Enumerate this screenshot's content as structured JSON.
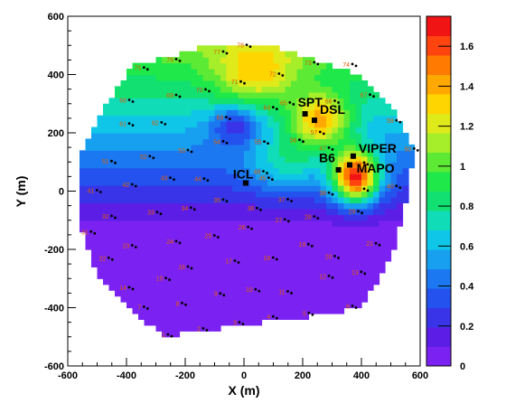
{
  "chart_data": {
    "type": "heatmap",
    "title": "",
    "xlabel": "X (m)",
    "ylabel": "Y (m)",
    "xlim": [
      -600,
      600
    ],
    "ylim": [
      -600,
      600
    ],
    "xticks": [
      "-600",
      "-400",
      "-200",
      "0",
      "200",
      "400",
      "600"
    ],
    "yticks": [
      "-600",
      "-400",
      "-200",
      "0",
      "200",
      "400",
      "600"
    ],
    "colorbar": {
      "range": [
        0,
        1.75
      ],
      "ticks": [
        "0",
        "0.2",
        "0.4",
        "0.6",
        "0.8",
        "1",
        "1.2",
        "1.4",
        "1.6"
      ],
      "palette": [
        "#7b22f2",
        "#5c1ee6",
        "#3a34e8",
        "#2352ee",
        "#1b78f0",
        "#17a0f0",
        "#0fc6e8",
        "#10dcb8",
        "#12e070",
        "#1ee84a",
        "#5cea34",
        "#a6ee2a",
        "#e0ea1a",
        "#ffd500",
        "#ffa800",
        "#ff7a00",
        "#ff4410",
        "#f01414"
      ]
    },
    "field_model": {
      "base": 0.25,
      "north_gradient": 0.0016,
      "blobs": [
        {
          "x": 380,
          "y": 50,
          "sx": 80,
          "sy": 90,
          "amp": 1.35
        },
        {
          "x": 260,
          "y": 240,
          "sx": 100,
          "sy": 90,
          "amp": 0.75
        },
        {
          "x": 40,
          "y": 400,
          "sx": 140,
          "sy": 110,
          "amp": 0.45
        },
        {
          "x": -30,
          "y": 230,
          "sx": 80,
          "sy": 70,
          "amp": -0.4
        },
        {
          "x": 150,
          "y": 90,
          "sx": 130,
          "sy": 100,
          "amp": 0.35
        }
      ]
    },
    "stations": [
      {
        "id": "1",
        "x": -268,
        "y": -495
      },
      {
        "id": "2",
        "x": -148,
        "y": -474
      },
      {
        "id": "3",
        "x": -25,
        "y": -453
      },
      {
        "id": "4",
        "x": 90,
        "y": -433
      },
      {
        "id": "5",
        "x": 212,
        "y": -421
      },
      {
        "id": "6",
        "x": 360,
        "y": -397
      },
      {
        "id": "7",
        "x": -350,
        "y": -400
      },
      {
        "id": "8",
        "x": -220,
        "y": -387
      },
      {
        "id": "9",
        "x": -90,
        "y": -354
      },
      {
        "id": "10",
        "x": 30,
        "y": -340
      },
      {
        "id": "11",
        "x": 140,
        "y": -347
      },
      {
        "id": "12",
        "x": 280,
        "y": -294
      },
      {
        "id": "13",
        "x": 390,
        "y": -280
      },
      {
        "id": "14",
        "x": -400,
        "y": -333
      },
      {
        "id": "15",
        "x": -275,
        "y": -301
      },
      {
        "id": "16",
        "x": -200,
        "y": -262
      },
      {
        "id": "17",
        "x": -40,
        "y": -242
      },
      {
        "id": "18",
        "x": 90,
        "y": -231
      },
      {
        "id": "19",
        "x": 210,
        "y": -185
      },
      {
        "id": "20",
        "x": 300,
        "y": -226
      },
      {
        "id": "21",
        "x": 440,
        "y": -182
      },
      {
        "id": "22",
        "x": -470,
        "y": -232
      },
      {
        "id": "23",
        "x": -390,
        "y": -189
      },
      {
        "id": "24",
        "x": -240,
        "y": -175
      },
      {
        "id": "25",
        "x": -110,
        "y": -155
      },
      {
        "id": "26",
        "x": 5,
        "y": -126
      },
      {
        "id": "27",
        "x": 130,
        "y": -100
      },
      {
        "id": "28",
        "x": 230,
        "y": -90
      },
      {
        "id": "29",
        "x": 380,
        "y": -72
      },
      {
        "id": "31",
        "x": -530,
        "y": -142
      },
      {
        "id": "32",
        "x": -460,
        "y": -88
      },
      {
        "id": "33",
        "x": -305,
        "y": -75
      },
      {
        "id": "34",
        "x": -190,
        "y": -60
      },
      {
        "id": "35",
        "x": -80,
        "y": -32
      },
      {
        "id": "36",
        "x": 35,
        "y": -61
      },
      {
        "id": "37",
        "x": 140,
        "y": -31
      },
      {
        "id": "38",
        "x": 280,
        "y": -8
      },
      {
        "id": "39",
        "x": 400,
        "y": 5
      },
      {
        "id": "40",
        "x": 510,
        "y": 15
      },
      {
        "id": "41",
        "x": -510,
        "y": 0
      },
      {
        "id": "42",
        "x": -390,
        "y": 20
      },
      {
        "id": "43",
        "x": -260,
        "y": 43
      },
      {
        "id": "44",
        "x": -145,
        "y": 40
      },
      {
        "id": "45",
        "x": 75,
        "y": 43
      },
      {
        "id": "46",
        "x": 57,
        "y": 65
      },
      {
        "id": "47",
        "x": 280,
        "y": 146
      },
      {
        "id": "49",
        "x": 400,
        "y": 95
      },
      {
        "id": "50",
        "x": 570,
        "y": 143
      },
      {
        "id": "51",
        "x": -460,
        "y": 100
      },
      {
        "id": "52",
        "x": -330,
        "y": 117
      },
      {
        "id": "53",
        "x": -200,
        "y": 138
      },
      {
        "id": "54",
        "x": -80,
        "y": 168
      },
      {
        "id": "55",
        "x": 60,
        "y": 167
      },
      {
        "id": "56",
        "x": 180,
        "y": 173
      },
      {
        "id": "57",
        "x": 250,
        "y": 200
      },
      {
        "id": "59",
        "x": 510,
        "y": 240
      },
      {
        "id": "61",
        "x": -400,
        "y": 229
      },
      {
        "id": "62",
        "x": -290,
        "y": 233
      },
      {
        "id": "63",
        "x": -70,
        "y": 251
      },
      {
        "id": "64",
        "x": 90,
        "y": 285
      },
      {
        "id": "65",
        "x": 147,
        "y": 301
      },
      {
        "id": "66",
        "x": 300,
        "y": 307
      },
      {
        "id": "67",
        "x": 420,
        "y": 328
      },
      {
        "id": "68",
        "x": -400,
        "y": 310
      },
      {
        "id": "69",
        "x": -240,
        "y": 327
      },
      {
        "id": "70",
        "x": -140,
        "y": 346
      },
      {
        "id": "71",
        "x": -20,
        "y": 373
      },
      {
        "id": "72",
        "x": 110,
        "y": 400
      },
      {
        "id": "73",
        "x": 230,
        "y": 439
      },
      {
        "id": "74",
        "x": 360,
        "y": 433
      },
      {
        "id": "75",
        "x": -350,
        "y": 421
      },
      {
        "id": "76",
        "x": -240,
        "y": 450
      },
      {
        "id": "77",
        "x": -80,
        "y": 476
      },
      {
        "id": "78",
        "x": 0,
        "y": 499
      }
    ],
    "buildings": [
      {
        "name": "SPT",
        "x": 208,
        "y": 265,
        "label_dx": -8,
        "label_dy": -8
      },
      {
        "name": "DSL",
        "x": 240,
        "y": 243,
        "label_dx": 6,
        "label_dy": -7
      },
      {
        "name": "VIPER",
        "x": 372,
        "y": 120,
        "label_dx": 6,
        "label_dy": -4
      },
      {
        "name": "B6",
        "x": 360,
        "y": 90,
        "label_dx": -34,
        "label_dy": -3
      },
      {
        "name": "MAPO",
        "x": 322,
        "y": 73,
        "label_dx": 20,
        "label_dy": 3
      },
      {
        "name": "ICL",
        "x": 6,
        "y": 28,
        "label_dx": -14,
        "label_dy": -5
      }
    ]
  }
}
